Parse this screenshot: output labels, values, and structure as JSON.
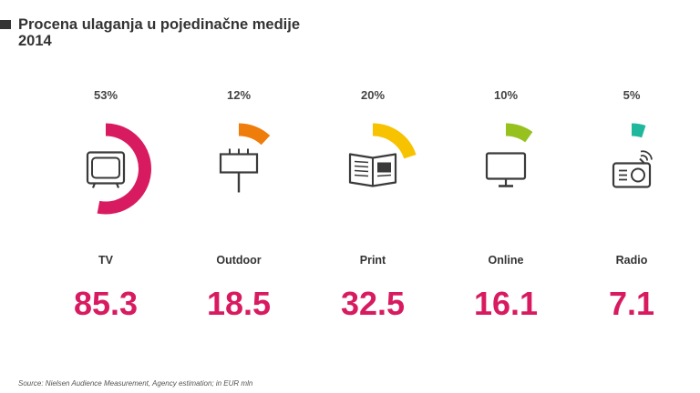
{
  "header": {
    "title": "Procena ulaganja u pojedinačne medije",
    "subtitle": "2014"
  },
  "colors": {
    "value_text": "#d81b60",
    "icon_stroke": "#3a3a3a"
  },
  "chart_data": {
    "type": "pie",
    "title": "Procena ulaganja u pojedinačne medije",
    "subtitle": "2014",
    "unit": "EUR mln",
    "categories": [
      "TV",
      "Outdoor",
      "Print",
      "Online",
      "Radio"
    ],
    "values": [
      85.3,
      18.5,
      32.5,
      16.1,
      7.1
    ],
    "percent_labels": [
      "53%",
      "12%",
      "20%",
      "10%",
      "5%"
    ],
    "percents": [
      53,
      12,
      20,
      10,
      5
    ],
    "value_labels": [
      "85.3",
      "18.5",
      "32.5",
      "16.1",
      "7.1"
    ],
    "icons": [
      "tv-icon",
      "billboard-icon",
      "newspaper-icon",
      "monitor-icon",
      "radio-icon"
    ],
    "slice_colors": [
      "#d81b60",
      "#ef7d0b",
      "#f7c200",
      "#96c11f",
      "#1fb89c"
    ]
  },
  "footer": {
    "source": "Source: Nielsen Audience Measurement, Agency estimation; in EUR mln"
  }
}
